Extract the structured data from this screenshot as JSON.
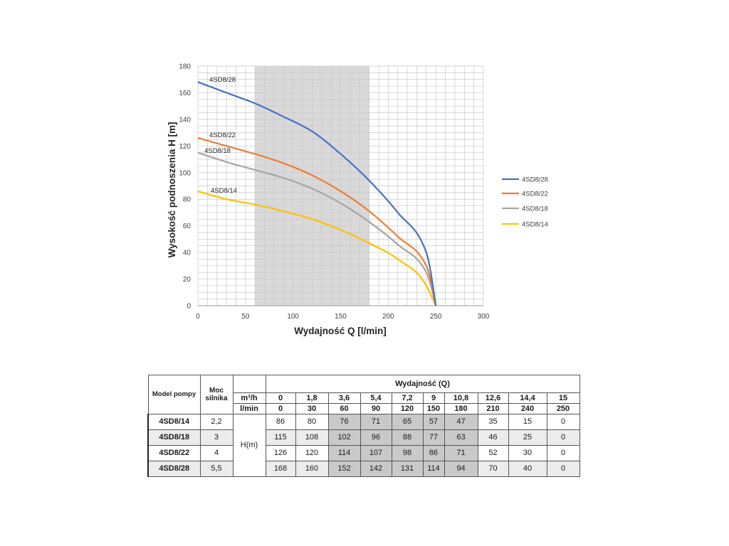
{
  "chart_data": {
    "type": "line",
    "xlabel": "Wydajność Q [l/min]",
    "ylabel": "Wysokość podnoszenia H [m]",
    "xlim": [
      0,
      300
    ],
    "ylim": [
      0,
      180
    ],
    "xticks": [
      0,
      50,
      100,
      150,
      200,
      250,
      300
    ],
    "yticks": [
      0,
      20,
      40,
      60,
      80,
      100,
      120,
      140,
      160,
      180
    ],
    "grid": true,
    "legend_position": "right",
    "highlight_range_x": [
      60,
      180
    ],
    "x": [
      0,
      30,
      60,
      90,
      120,
      150,
      180,
      210,
      240,
      250
    ],
    "series": [
      {
        "name": "4SD8/28",
        "color": "#4472C4",
        "values": [
          168,
          160,
          152,
          142,
          131,
          114,
          94,
          70,
          40,
          0
        ]
      },
      {
        "name": "4SD8/22",
        "color": "#ED7D31",
        "values": [
          126,
          120,
          114,
          107,
          98,
          86,
          71,
          52,
          30,
          0
        ]
      },
      {
        "name": "4SD8/18",
        "color": "#A5A5A5",
        "values": [
          115,
          108,
          102,
          96,
          88,
          77,
          63,
          46,
          25,
          0
        ]
      },
      {
        "name": "4SD8/14",
        "color": "#FFC000",
        "values": [
          86,
          80,
          76,
          71,
          65,
          57,
          47,
          35,
          15,
          0
        ]
      }
    ]
  },
  "table": {
    "header": {
      "model": "Model pompy",
      "power": "Moc silnika",
      "flow_title": "Wydajność (Q)",
      "unit_m3h": "m³/h",
      "unit_lmin": "l/min",
      "head_unit": "H(m)"
    },
    "flow_m3h": [
      "0",
      "1,8",
      "3,6",
      "5,4",
      "7,2",
      "9",
      "10,8",
      "12,6",
      "14,4",
      "15"
    ],
    "flow_lmin": [
      "0",
      "30",
      "60",
      "90",
      "120",
      "150",
      "180",
      "210",
      "240",
      "250"
    ],
    "rows": [
      {
        "model": "4SD8/14",
        "power": "2,2",
        "values": [
          "86",
          "80",
          "76",
          "71",
          "65",
          "57",
          "47",
          "35",
          "15",
          "0"
        ]
      },
      {
        "model": "4SD8/18",
        "power": "3",
        "values": [
          "115",
          "108",
          "102",
          "96",
          "88",
          "77",
          "63",
          "46",
          "25",
          "0"
        ]
      },
      {
        "model": "4SD8/22",
        "power": "4",
        "values": [
          "126",
          "120",
          "114",
          "107",
          "98",
          "86",
          "71",
          "52",
          "30",
          "0"
        ]
      },
      {
        "model": "4SD8/28",
        "power": "5,5",
        "values": [
          "168",
          "160",
          "152",
          "142",
          "131",
          "114",
          "94",
          "70",
          "40",
          "0"
        ]
      }
    ]
  }
}
